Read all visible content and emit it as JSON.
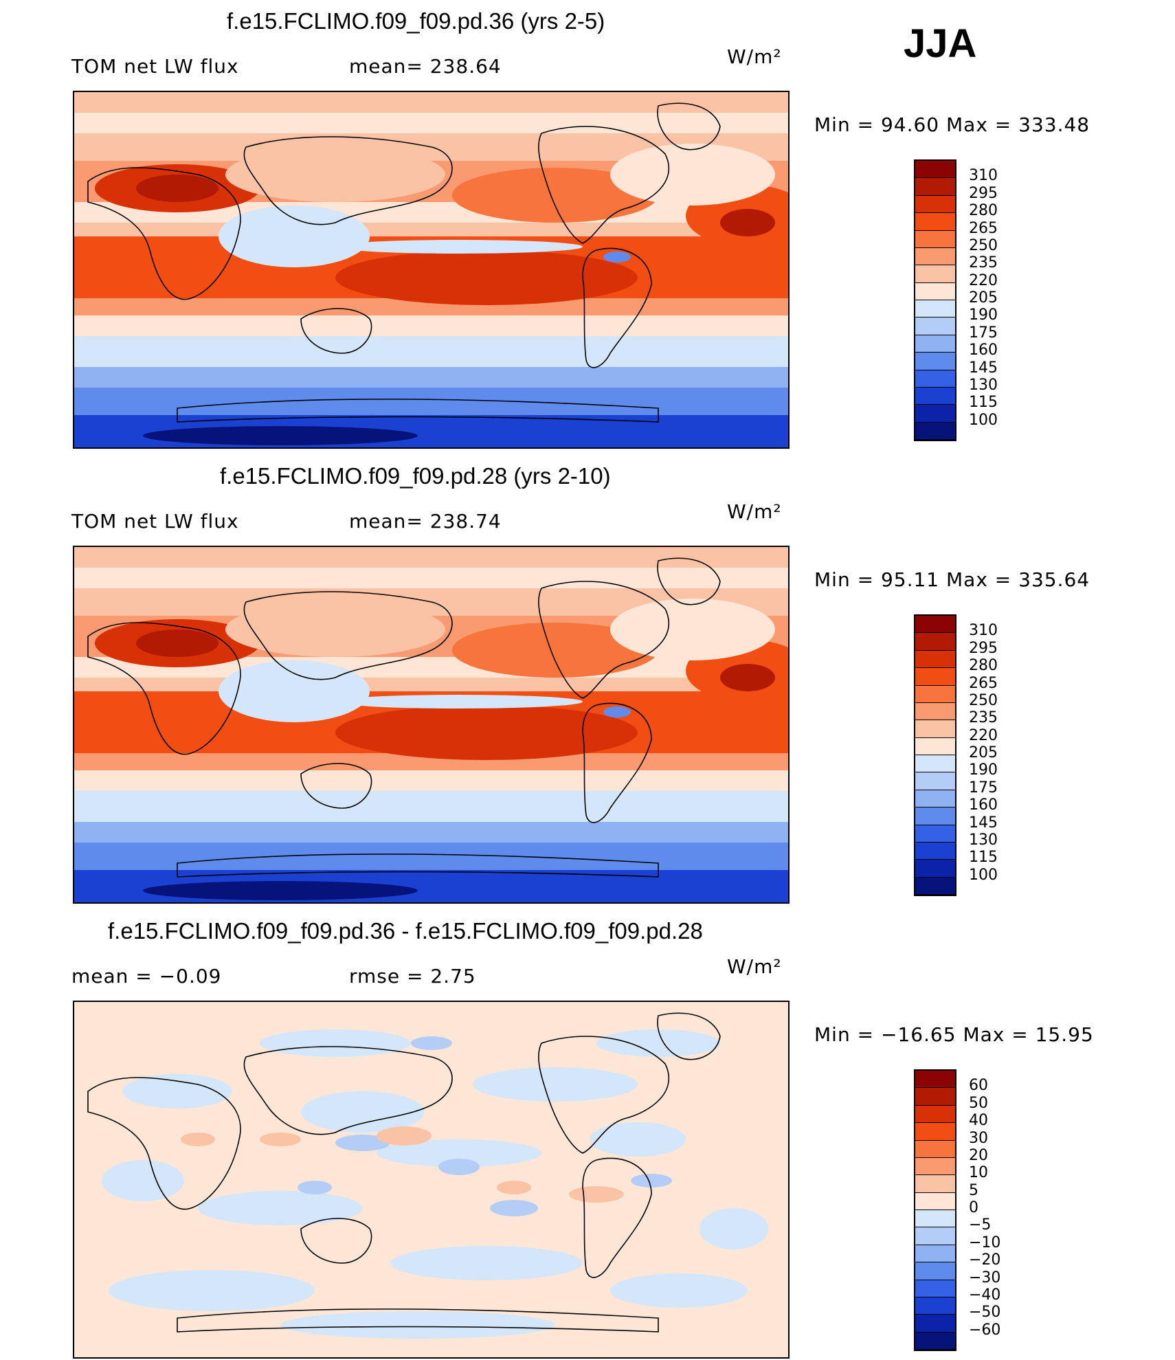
{
  "season": "JJA",
  "panels": [
    {
      "title": "f.e15.FCLIMO.f09_f09.pd.36 (yrs 2-5)",
      "left_label": "TOM net LW flux",
      "mid_label": "mean= 238.64",
      "units": "W/m²",
      "minmax": "Min =   94.60 Max = 333.48",
      "levels": [
        "310",
        "295",
        "280",
        "265",
        "250",
        "235",
        "220",
        "205",
        "190",
        "175",
        "160",
        "145",
        "130",
        "115",
        "100"
      ]
    },
    {
      "title": "f.e15.FCLIMO.f09_f09.pd.28 (yrs 2-10)",
      "left_label": "TOM net LW flux",
      "mid_label": "mean= 238.74",
      "units": "W/m²",
      "minmax": "Min =   95.11 Max = 335.64",
      "levels": [
        "310",
        "295",
        "280",
        "265",
        "250",
        "235",
        "220",
        "205",
        "190",
        "175",
        "160",
        "145",
        "130",
        "115",
        "100"
      ]
    },
    {
      "title": "f.e15.FCLIMO.f09_f09.pd.36 - f.e15.FCLIMO.f09_f09.pd.28",
      "left_label": "mean =   −0.09",
      "mid_label": "rmse =    2.75",
      "units": "W/m²",
      "minmax": "Min = −16.65 Max =   15.95",
      "levels": [
        "60",
        "50",
        "40",
        "30",
        "20",
        "10",
        "5",
        "0",
        "−5",
        "−10",
        "−20",
        "−30",
        "−40",
        "−50",
        "−60"
      ]
    }
  ],
  "palette": [
    "#8c0303",
    "#b21a04",
    "#d83108",
    "#f24e14",
    "#f7743c",
    "#f99a70",
    "#fbc3a5",
    "#fde6d6",
    "#d4e6f9",
    "#b4cdf7",
    "#8fb2f2",
    "#5f8cec",
    "#3461e6",
    "#1a41d1",
    "#0b23a8",
    "#06137a"
  ],
  "chart_data": [
    {
      "type": "heatmap",
      "title": "f.e15.FCLIMO.f09_f09.pd.36 (yrs 2-5)",
      "variable": "TOM net LW flux",
      "units": "W/m²",
      "mean": 238.64,
      "min": 94.6,
      "max": 333.48,
      "contour_levels": [
        100,
        115,
        130,
        145,
        160,
        175,
        190,
        205,
        220,
        235,
        250,
        265,
        280,
        295,
        310
      ]
    },
    {
      "type": "heatmap",
      "title": "f.e15.FCLIMO.f09_f09.pd.28 (yrs 2-10)",
      "variable": "TOM net LW flux",
      "units": "W/m²",
      "mean": 238.74,
      "min": 95.11,
      "max": 335.64,
      "contour_levels": [
        100,
        115,
        130,
        145,
        160,
        175,
        190,
        205,
        220,
        235,
        250,
        265,
        280,
        295,
        310
      ]
    },
    {
      "type": "heatmap",
      "title": "f.e15.FCLIMO.f09_f09.pd.36 - f.e15.FCLIMO.f09_f09.pd.28",
      "units": "W/m²",
      "mean": -0.09,
      "rmse": 2.75,
      "min": -16.65,
      "max": 15.95,
      "contour_levels": [
        -60,
        -50,
        -40,
        -30,
        -20,
        -10,
        -5,
        0,
        5,
        10,
        20,
        30,
        40,
        50,
        60
      ]
    }
  ]
}
